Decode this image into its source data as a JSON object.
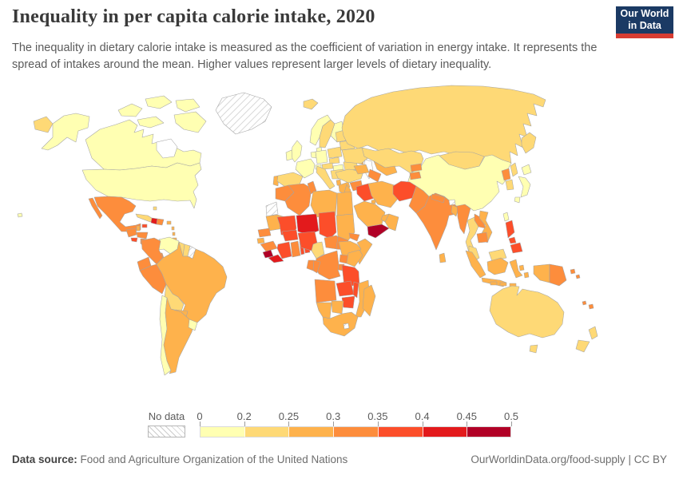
{
  "header": {
    "title": "Inequality in per capita calorie intake, 2020",
    "subtitle": "The inequality in dietary calorie intake is measured as the coefficient of variation in energy intake. It represents the spread of intakes around the mean. Higher values represent larger levels of dietary inequality.",
    "logo": {
      "line1": "Our World",
      "line2": "in Data"
    }
  },
  "footer": {
    "datasource_label": "Data source:",
    "datasource_text": "Food and Agriculture Organization of the United Nations",
    "link_text": "OurWorldinData.org/food-supply",
    "separator": "|",
    "license_text": "CC BY"
  },
  "colors": {
    "logo_bg": "#1b3a64",
    "logo_accent": "#d73c32",
    "title_color": "#3a3a3a",
    "text_gray": "#5b5b5b",
    "country_border": "#a4a4a4",
    "ocean": "#ffffff"
  },
  "chart_data": {
    "type": "heatmap",
    "subtype": "choropleth_world_map",
    "title": "Inequality in per capita calorie intake, 2020",
    "metric": "Coefficient of variation of per capita dietary energy intake",
    "year": 2020,
    "legend_position": "bottom",
    "legend": {
      "no_data_label": "No data",
      "tick_labels": [
        "0",
        "0.2",
        "0.25",
        "0.3",
        "0.35",
        "0.4",
        "0.45",
        "0.5"
      ],
      "bin_edges": [
        0,
        0.2,
        0.25,
        0.3,
        0.35,
        0.4,
        0.45,
        0.5
      ],
      "bin_colors": [
        "#ffffb2",
        "#fed976",
        "#feb24c",
        "#fd8d3c",
        "#fc4e2a",
        "#e31a1c",
        "#b10026"
      ]
    },
    "bins_note": "Each country is shaded with one of 7 color bins read from the map; 'no-data' = hatched.",
    "countries_bin": {
      "canada": 1,
      "united-states": 1,
      "greenland": "no-data",
      "mexico": 4,
      "guatemala": 4,
      "belize": 3,
      "honduras": 4,
      "el-salvador": 5,
      "nicaragua": 4,
      "costa-rica": 3,
      "panama": 4,
      "cuba": 2,
      "jamaica": 5,
      "haiti": 6,
      "dominican-republic": 4,
      "puerto-rico": 3,
      "bahamas": 2,
      "lesser-antilles": 3,
      "trinidad-and-tobago": 3,
      "colombia": 4,
      "venezuela": 1,
      "guyana": 2,
      "suriname": 2,
      "french-guiana": "no-data",
      "ecuador": 4,
      "peru": 4,
      "brazil": 3,
      "bolivia": 2,
      "paraguay": 3,
      "chile": 1,
      "argentina": 3,
      "uruguay": 1,
      "iceland": 2,
      "ireland": 1,
      "united-kingdom": 1,
      "portugal": 3,
      "spain": 2,
      "france": 1,
      "benelux": 1,
      "germany": 1,
      "denmark": 1,
      "norway": 1,
      "sweden": 2,
      "finland": 1,
      "switzerland": 1,
      "austria": 2,
      "czechia": 2,
      "poland": 2,
      "italy": 2,
      "hungary": 1,
      "balkans": 2,
      "albania": 3,
      "greece": 3,
      "romania": 2,
      "bulgaria": 2,
      "moldova": 3,
      "ukraine": 2,
      "belarus": 2,
      "baltic-states": 2,
      "russia": 2,
      "turkey": 2,
      "caucasus": 3,
      "syria": 4,
      "levant": 3,
      "iraq": 5,
      "iran": 3,
      "kuwait": 3,
      "saudi-arabia": 3,
      "yemen": 7,
      "oman": 3,
      "uae": 3,
      "kazakhstan": 2,
      "uzbekistan": 3,
      "turkmenistan": 4,
      "kyrgyzstan": 4,
      "tajikistan": 4,
      "afghanistan": 5,
      "pakistan": 4,
      "india": 4,
      "nepal": 4,
      "bhutan": "no-data",
      "bangladesh": 3,
      "sri-lanka": 3,
      "myanmar": 4,
      "thailand": 2,
      "laos": 4,
      "vietnam": 3,
      "cambodia": 4,
      "malaysia": 2,
      "indonesia": 3,
      "philippines": 5,
      "china": 1,
      "mongolia": 2,
      "north-korea": 4,
      "south-korea": 2,
      "japan": 1,
      "taiwan": 1,
      "papua-new-guinea": 4,
      "solomon-islands": 4,
      "fiji": 4,
      "new-caledonia": 4,
      "australia": 2,
      "new-zealand": 2,
      "morocco": 4,
      "western-sahara": "no-data",
      "algeria": 4,
      "tunisia": 4,
      "libya": 3,
      "egypt": 3,
      "mauritania": 3,
      "mali": 5,
      "niger": 6,
      "chad": 5,
      "sudan": 3,
      "senegal": 4,
      "guinea-bissau": 3,
      "guinea": 4,
      "sierra-leone": 7,
      "liberia": 6,
      "cote-divoire": 5,
      "ghana": 4,
      "togo": 5,
      "benin": 5,
      "burkina-faso": 5,
      "nigeria": 5,
      "cameroon": 2,
      "central-african-republic": 4,
      "south-sudan": 4,
      "eritrea": 4,
      "ethiopia": 3,
      "somalia": 3,
      "uganda": 4,
      "kenya": 3,
      "rwanda-burundi": 4,
      "dr-congo": 4,
      "congo": 4,
      "gabon": 4,
      "tanzania": 5,
      "angola": 4,
      "zambia": 5,
      "malawi": 5,
      "mozambique": 3,
      "zimbabwe": 5,
      "botswana": 3,
      "namibia": 3,
      "south-africa": 3,
      "lesotho": "no-data",
      "madagascar": 3
    }
  }
}
